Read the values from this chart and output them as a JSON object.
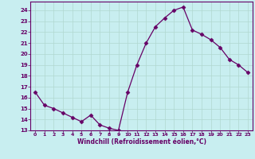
{
  "x": [
    0,
    1,
    2,
    3,
    4,
    5,
    6,
    7,
    8,
    9,
    10,
    11,
    12,
    13,
    14,
    15,
    16,
    17,
    18,
    19,
    20,
    21,
    22,
    23
  ],
  "y": [
    16.5,
    15.3,
    15.0,
    14.6,
    14.2,
    13.8,
    14.4,
    13.5,
    13.2,
    13.0,
    16.5,
    19.0,
    21.0,
    22.5,
    23.3,
    24.0,
    24.3,
    22.2,
    21.8,
    21.3,
    20.6,
    19.5,
    19.0,
    18.3
  ],
  "line_color": "#660066",
  "marker": "D",
  "marker_size": 2.5,
  "bg_color": "#c8eef0",
  "grid_color": "#b0d8d0",
  "xlabel": "Windchill (Refroidissement éolien,°C)",
  "xlabel_color": "#660066",
  "xlim": [
    -0.5,
    23.5
  ],
  "ylim": [
    13,
    24.8
  ],
  "yticks": [
    13,
    14,
    15,
    16,
    17,
    18,
    19,
    20,
    21,
    22,
    23,
    24
  ],
  "xticks": [
    0,
    1,
    2,
    3,
    4,
    5,
    6,
    7,
    8,
    9,
    10,
    11,
    12,
    13,
    14,
    15,
    16,
    17,
    18,
    19,
    20,
    21,
    22,
    23
  ],
  "tick_color": "#660066",
  "axis_color": "#660066",
  "spine_color": "#660066"
}
